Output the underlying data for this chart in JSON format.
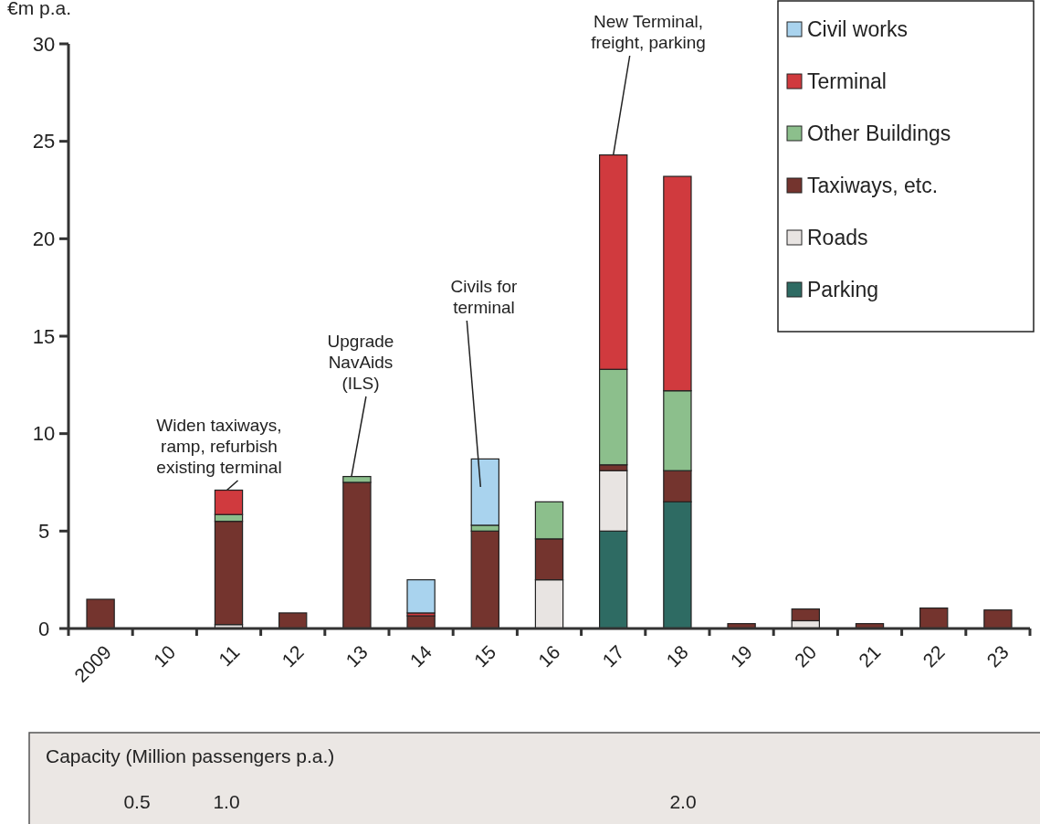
{
  "chart_data": {
    "type": "bar",
    "stacked": true,
    "ylabel": "€m p.a.",
    "categories": [
      "2009",
      "10",
      "11",
      "12",
      "13",
      "14",
      "15",
      "16",
      "17",
      "18",
      "19",
      "20",
      "21",
      "22",
      "23"
    ],
    "series": [
      {
        "name": "Parking",
        "color": "#2e6b63",
        "values": [
          0,
          0,
          0,
          0,
          0,
          0,
          0,
          0,
          5.0,
          6.5,
          0,
          0,
          0,
          0,
          0
        ]
      },
      {
        "name": "Roads",
        "color": "#e8e4e2",
        "values": [
          0,
          0,
          0.2,
          0,
          0,
          0,
          0,
          2.5,
          3.1,
          0,
          0,
          0.4,
          0,
          0,
          0
        ]
      },
      {
        "name": "Taxiways, etc.",
        "color": "#74342e",
        "values": [
          1.5,
          0,
          5.3,
          0.8,
          7.5,
          0.65,
          5.0,
          2.1,
          0.3,
          1.6,
          0.25,
          0.6,
          0.25,
          1.05,
          0.95
        ]
      },
      {
        "name": "Other Buildings",
        "color": "#8cbf8c",
        "values": [
          0,
          0,
          0.35,
          0,
          0.3,
          0,
          0.3,
          1.9,
          4.9,
          4.1,
          0,
          0,
          0,
          0,
          0
        ]
      },
      {
        "name": "Terminal",
        "color": "#d03a3e",
        "values": [
          0,
          0,
          1.25,
          0,
          0,
          0.15,
          0,
          0,
          11.0,
          11.0,
          0,
          0,
          0,
          0,
          0
        ]
      },
      {
        "name": "Civil works",
        "color": "#a9d3ee",
        "values": [
          0,
          0,
          0,
          0,
          0,
          1.7,
          3.4,
          0,
          0,
          0,
          0,
          0,
          0,
          0,
          0
        ]
      }
    ],
    "ylim": [
      0,
      30
    ],
    "yticks": [
      0,
      5,
      10,
      15,
      20,
      25,
      30
    ],
    "grid": false,
    "legend": "top right",
    "annotations": [
      {
        "text": "Widen taxiways, ramp, refurbish existing terminal",
        "x": "11",
        "y": 7.1
      },
      {
        "text": "Upgrade NavAids (ILS)",
        "x": "13",
        "y": 7.8
      },
      "Civils for terminal",
      {
        "text": "New Terminal, freight, parking",
        "x": "17",
        "y": 24.3
      },
      "Capacity (Million passengers p.a.)",
      "0.5",
      "1.0",
      "2.0"
    ]
  }
}
